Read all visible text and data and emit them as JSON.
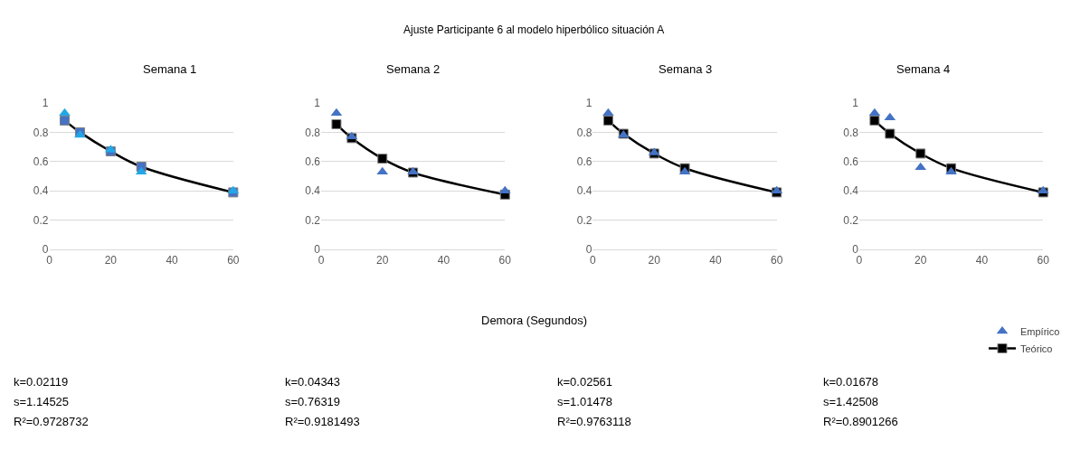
{
  "chart_data": [
    {
      "type": "scatter",
      "title": "Semana 1",
      "x": [
        5,
        10,
        20,
        30,
        60
      ],
      "xlim": [
        0,
        60
      ],
      "xticks": [
        0,
        20,
        40,
        60
      ],
      "ylim": [
        0,
        1
      ],
      "yticks": [
        0,
        0.2,
        0.4,
        0.6,
        0.8,
        1
      ],
      "grid": "y",
      "annotations": [
        "k=0.02119",
        "s=1.14525",
        "R²=0.9728732"
      ],
      "series": [
        {
          "marker": "triangle",
          "color": "#22a7e6",
          "values": [
            0.93,
            0.78,
            0.68,
            0.53,
            0.4
          ]
        },
        {
          "type": "line",
          "marker": "square",
          "color": "#000000",
          "colors": [
            "#4472c4",
            "#4472c4",
            "#4472c4",
            "#4472c4",
            "#4472c4"
          ],
          "values": [
            0.88,
            0.8,
            0.67,
            0.565,
            0.39
          ]
        }
      ]
    },
    {
      "type": "scatter",
      "title": "Semana 2",
      "xlabel": "Demora (Segundos)",
      "x": [
        5,
        10,
        20,
        30,
        60
      ],
      "xlim": [
        0,
        60
      ],
      "xticks": [
        0,
        20,
        40,
        60
      ],
      "ylim": [
        0,
        1
      ],
      "yticks": [
        0,
        0.2,
        0.4,
        0.6,
        0.8,
        1
      ],
      "grid": "y",
      "annotations": [
        "Ajuste Participante 6 al modelo hiperbólico situación A",
        "k=0.04343",
        "s=0.76319",
        "R²=0.9181493"
      ],
      "series": [
        {
          "marker": "triangle",
          "color": "#4472c4",
          "values": [
            0.93,
            0.77,
            0.53,
            0.53,
            0.4
          ]
        },
        {
          "type": "line",
          "marker": "square",
          "color": "#000000",
          "values": [
            0.855,
            0.76,
            0.62,
            0.525,
            0.375
          ]
        }
      ]
    },
    {
      "type": "scatter",
      "title": "Semana 3",
      "x": [
        5,
        10,
        20,
        30,
        60
      ],
      "xlim": [
        0,
        60
      ],
      "xticks": [
        0,
        20,
        40,
        60
      ],
      "ylim": [
        0,
        1
      ],
      "yticks": [
        0,
        0.2,
        0.4,
        0.6,
        0.8,
        1
      ],
      "grid": "y",
      "annotations": [
        "k=0.02561",
        "s=1.01478",
        "R²=0.9763118"
      ],
      "series": [
        {
          "marker": "triangle",
          "color": "#4472c4",
          "values": [
            0.93,
            0.78,
            0.66,
            0.53,
            0.4
          ]
        },
        {
          "type": "line",
          "marker": "square",
          "color": "#000000",
          "values": [
            0.88,
            0.79,
            0.655,
            0.555,
            0.39
          ]
        }
      ]
    },
    {
      "type": "scatter",
      "title": "Semana 4",
      "x": [
        5,
        10,
        20,
        30,
        60
      ],
      "xlim": [
        0,
        60
      ],
      "xticks": [
        0,
        20,
        40,
        60
      ],
      "ylim": [
        0,
        1
      ],
      "yticks": [
        0,
        0.2,
        0.4,
        0.6,
        0.8,
        1
      ],
      "grid": "y",
      "legend": "bottom right",
      "annotations": [
        "k=0.01678",
        "s=1.42508",
        "R²=0.8901266"
      ],
      "series": [
        {
          "name": "Empírico",
          "marker": "triangle",
          "color": "#4472c4",
          "values": [
            0.93,
            0.9,
            0.56,
            0.53,
            0.4
          ]
        },
        {
          "name": "Teórico",
          "type": "line",
          "marker": "square",
          "color": "#000000",
          "values": [
            0.88,
            0.79,
            0.655,
            0.555,
            0.39
          ]
        }
      ]
    }
  ]
}
